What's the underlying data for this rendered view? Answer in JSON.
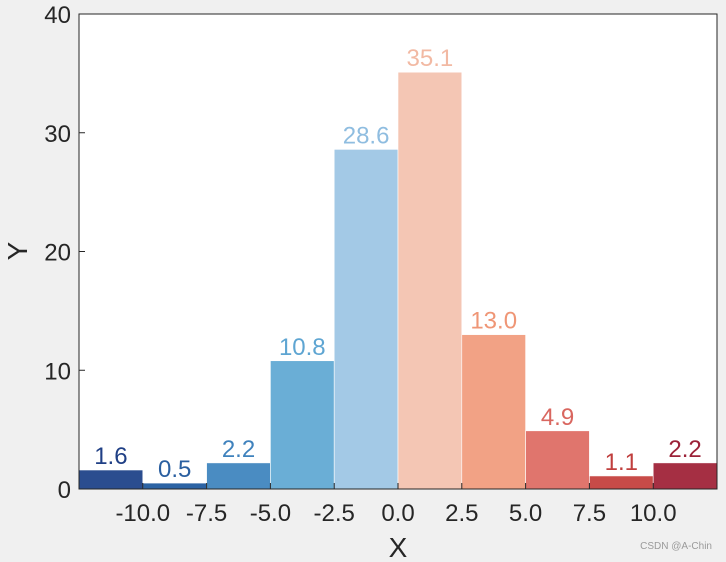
{
  "chart_data": {
    "type": "bar",
    "title": "",
    "xlabel": "X",
    "ylabel": "Y",
    "xlim": [
      -12.5,
      12.5
    ],
    "ylim": [
      0,
      40
    ],
    "bin_width": 2.5,
    "x_ticks": [
      -10.0,
      -7.5,
      -5.0,
      -2.5,
      0.0,
      2.5,
      5.0,
      7.5,
      10.0
    ],
    "x_tick_labels": [
      "-10.0",
      "-7.5",
      "-5.0",
      "-2.5",
      "0.0",
      "2.5",
      "5.0",
      "7.5",
      "10.0"
    ],
    "y_ticks": [
      0,
      10,
      20,
      30,
      40
    ],
    "y_tick_labels": [
      "0",
      "10",
      "20",
      "30",
      "40"
    ],
    "bins": [
      {
        "x_start": -12.5,
        "x_end": -10.0,
        "value": 1.6,
        "label": "1.6",
        "color": "#2b4d8f",
        "label_color": "#1f3f85"
      },
      {
        "x_start": -10.0,
        "x_end": -7.5,
        "value": 0.5,
        "label": "0.5",
        "color": "#2c63a4",
        "label_color": "#2a5fa0"
      },
      {
        "x_start": -7.5,
        "x_end": -5.0,
        "value": 2.2,
        "label": "2.2",
        "color": "#4a8cc2",
        "label_color": "#3f82bd"
      },
      {
        "x_start": -5.0,
        "x_end": -2.5,
        "value": 10.8,
        "label": "10.8",
        "color": "#6aaed6",
        "label_color": "#5ea5d2"
      },
      {
        "x_start": -2.5,
        "x_end": 0.0,
        "value": 28.6,
        "label": "28.6",
        "color": "#a3c9e6",
        "label_color": "#8fbde0"
      },
      {
        "x_start": 0.0,
        "x_end": 2.5,
        "value": 35.1,
        "label": "35.1",
        "color": "#f4c6b4",
        "label_color": "#f2b9a3"
      },
      {
        "x_start": 2.5,
        "x_end": 5.0,
        "value": 13.0,
        "label": "13.0",
        "color": "#f2a285",
        "label_color": "#ef9676"
      },
      {
        "x_start": 5.0,
        "x_end": 7.5,
        "value": 4.9,
        "label": "4.9",
        "color": "#e0756d",
        "label_color": "#d9665f"
      },
      {
        "x_start": 7.5,
        "x_end": 10.0,
        "value": 1.1,
        "label": "1.1",
        "color": "#c84b48",
        "label_color": "#c03f3e"
      },
      {
        "x_start": 10.0,
        "x_end": 12.5,
        "value": 2.2,
        "label": "2.2",
        "color": "#a52f43",
        "label_color": "#9c2238"
      }
    ],
    "grid": false,
    "legend": "none"
  },
  "watermark": "CSDN @A-Chin"
}
